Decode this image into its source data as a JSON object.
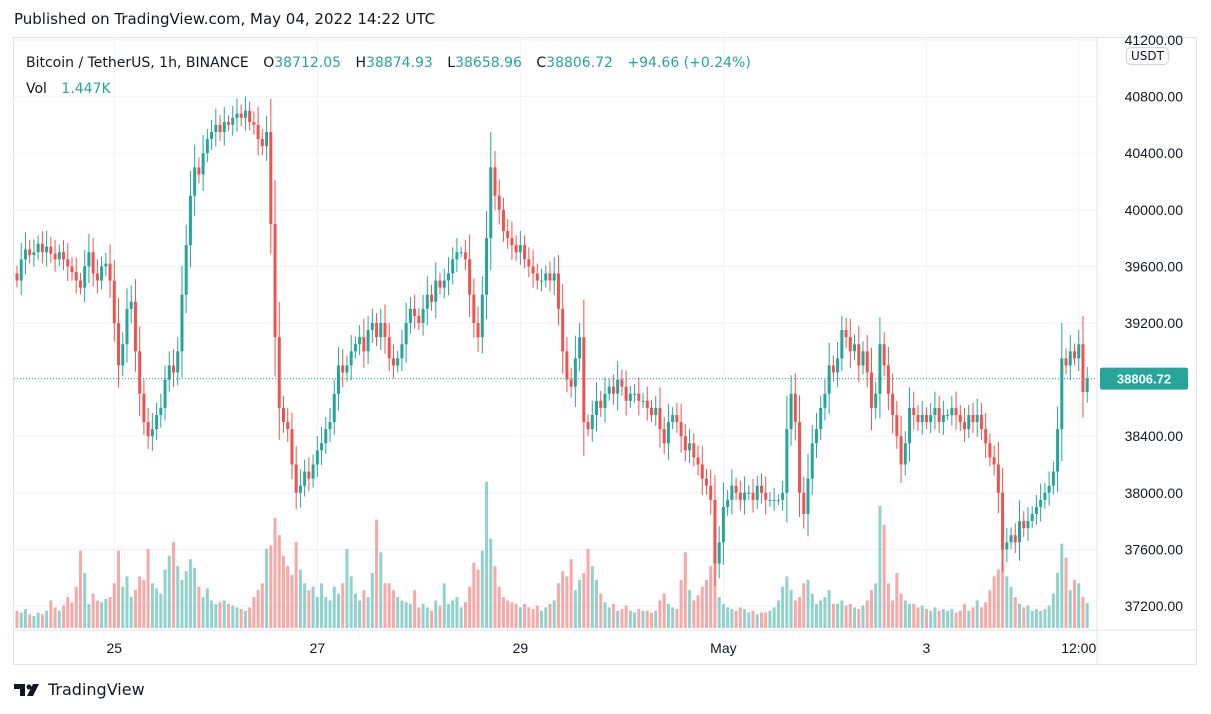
{
  "published": "Published on TradingView.com, May 04, 2022 14:22 UTC",
  "legend": {
    "symbol": "Bitcoin / TetherUS, 1h, BINANCE",
    "o_label": "O",
    "o": "38712.05",
    "h_label": "H",
    "h": "38874.93",
    "l_label": "L",
    "l": "38658.96",
    "c_label": "C",
    "c": "38806.72",
    "change": "+94.66 (+0.24%)",
    "vol_label": "Vol",
    "vol": "1.447K"
  },
  "currency": "USDT",
  "footer": {
    "brand": "TradingView"
  },
  "colors": {
    "up": "#26a69a",
    "down": "#ef5350",
    "grid": "#f0f3fa"
  },
  "chart_data": {
    "type": "candlestick",
    "interval": "1h",
    "start": "Apr 24 01:00",
    "end": "May 04 14:00",
    "ylim": [
      37000,
      41250
    ],
    "y_ticks": [
      "41200.00",
      "40800.00",
      "40400.00",
      "40000.00",
      "39600.00",
      "39200.00",
      "38400.00",
      "38000.00",
      "37600.00",
      "37200.00"
    ],
    "grid_values": [
      41200,
      40800,
      40400,
      40000,
      39600,
      39200,
      38800,
      38400,
      38000,
      37600,
      37200
    ],
    "x_ticks": [
      {
        "label": "25",
        "index": 23
      },
      {
        "label": "27",
        "index": 71
      },
      {
        "label": "29",
        "index": 119
      },
      {
        "label": "May",
        "index": 167
      },
      {
        "label": "3",
        "index": 215
      },
      {
        "label": "12:00",
        "index": 251
      }
    ],
    "last_price": "38806.72",
    "last_price_value": 38806.72,
    "first_open": 39550,
    "close": [
      39500,
      39650,
      39720,
      39680,
      39700,
      39760,
      39700,
      39740,
      39690,
      39650,
      39700,
      39650,
      39600,
      39560,
      39500,
      39450,
      39600,
      39700,
      39550,
      39500,
      39600,
      39620,
      39500,
      39200,
      38900,
      39050,
      39300,
      39350,
      39000,
      38700,
      38500,
      38400,
      38450,
      38550,
      38600,
      38800,
      38900,
      38850,
      39000,
      39400,
      39750,
      40100,
      40300,
      40250,
      40400,
      40500,
      40550,
      40600,
      40550,
      40620,
      40600,
      40650,
      40680,
      40650,
      40700,
      40620,
      40600,
      40500,
      40450,
      40550,
      39900,
      39100,
      38600,
      38500,
      38450,
      38200,
      38000,
      38050,
      38150,
      38100,
      38200,
      38300,
      38350,
      38450,
      38500,
      38700,
      38900,
      38850,
      38900,
      39000,
      39050,
      39100,
      39000,
      39150,
      39200,
      39100,
      39200,
      39100,
      38950,
      38900,
      38950,
      39050,
      39200,
      39300,
      39250,
      39200,
      39300,
      39400,
      39350,
      39500,
      39450,
      39500,
      39550,
      39650,
      39700,
      39700,
      39650,
      39400,
      39200,
      39100,
      39400,
      39800,
      40300,
      40100,
      40000,
      39850,
      39800,
      39750,
      39700,
      39750,
      39650,
      39600,
      39550,
      39500,
      39500,
      39550,
      39500,
      39550,
      39300,
      39000,
      38800,
      38750,
      38950,
      39100,
      38500,
      38450,
      38550,
      38650,
      38600,
      38700,
      38750,
      38700,
      38800,
      38750,
      38650,
      38700,
      38700,
      38650,
      38650,
      38600,
      38550,
      38600,
      38450,
      38350,
      38500,
      38550,
      38500,
      38400,
      38300,
      38350,
      38250,
      38200,
      38100,
      38050,
      37950,
      37500,
      37650,
      37900,
      37950,
      38050,
      38000,
      37950,
      38000,
      38000,
      37950,
      38050,
      38000,
      37950,
      37950,
      37950,
      37950,
      38000,
      38450,
      38700,
      38500,
      38000,
      37850,
      38100,
      38350,
      38450,
      38600,
      38700,
      38900,
      38850,
      38950,
      39150,
      39100,
      39000,
      39050,
      38900,
      39000,
      38850,
      38600,
      38700,
      39050,
      38900,
      38700,
      38550,
      38400,
      38200,
      38350,
      38600,
      38550,
      38500,
      38550,
      38500,
      38550,
      38600,
      38500,
      38550,
      38550,
      38600,
      38550,
      38500,
      38450,
      38550,
      38500,
      38550,
      38450,
      38350,
      38250,
      38200,
      38000,
      37600,
      37650,
      37700,
      37650,
      37800,
      37750,
      37800,
      37850,
      37900,
      37950,
      38000,
      38050,
      38150,
      38450,
      38950,
      38900,
      39000,
      38950,
      39050,
      38712.05,
      38806.72
    ],
    "volume_k": [
      1.0,
      0.9,
      1.1,
      0.8,
      0.7,
      0.9,
      0.8,
      1.0,
      1.6,
      1.2,
      1.0,
      1.3,
      1.8,
      1.5,
      2.4,
      4.5,
      3.2,
      1.4,
      2.0,
      1.6,
      1.5,
      1.7,
      1.8,
      2.6,
      4.5,
      2.4,
      3.0,
      1.8,
      2.2,
      3.0,
      2.8,
      4.6,
      2.6,
      2.3,
      2.0,
      3.4,
      4.2,
      5.0,
      3.6,
      2.8,
      3.3,
      4.0,
      3.5,
      2.4,
      1.8,
      2.3,
      1.6,
      1.4,
      1.5,
      1.6,
      1.4,
      1.3,
      1.2,
      1.1,
      1.0,
      1.2,
      1.8,
      2.2,
      2.6,
      4.6,
      4.8,
      6.4,
      5.4,
      4.2,
      3.6,
      3.1,
      5.0,
      3.4,
      2.6,
      2.2,
      2.4,
      1.8,
      2.6,
      1.8,
      1.6,
      2.4,
      2.0,
      2.6,
      4.6,
      3.0,
      2.0,
      1.6,
      2.2,
      1.8,
      3.2,
      6.3,
      4.4,
      2.6,
      2.6,
      2.2,
      1.8,
      1.6,
      1.5,
      1.4,
      2.2,
      1.2,
      1.4,
      1.2,
      1.0,
      1.6,
      1.3,
      2.6,
      1.4,
      1.6,
      1.8,
      1.2,
      1.5,
      2.4,
      3.8,
      3.4,
      4.5,
      8.5,
      5.2,
      3.6,
      2.4,
      1.8,
      1.6,
      1.5,
      1.4,
      1.2,
      1.4,
      1.2,
      1.1,
      1.3,
      1.0,
      1.2,
      1.4,
      1.6,
      2.6,
      3.3,
      3.0,
      4.0,
      2.2,
      2.8,
      3.2,
      4.6,
      3.6,
      2.8,
      2.0,
      1.5,
      1.2,
      1.4,
      1.0,
      1.1,
      1.3,
      1.0,
      0.9,
      1.1,
      1.0,
      1.0,
      0.9,
      1.0,
      1.6,
      2.0,
      1.4,
      1.2,
      1.1,
      2.8,
      4.4,
      2.2,
      1.6,
      1.9,
      2.4,
      2.8,
      3.6,
      4.8,
      1.8,
      1.4,
      1.2,
      1.1,
      1.0,
      1.2,
      1.1,
      0.9,
      1.0,
      0.8,
      0.9,
      0.9,
      1.0,
      1.2,
      1.6,
      2.4,
      3.0,
      2.2,
      1.6,
      1.8,
      2.6,
      2.8,
      2.0,
      1.4,
      1.6,
      1.8,
      2.2,
      1.4,
      1.4,
      1.6,
      1.3,
      1.4,
      1.2,
      1.1,
      1.3,
      1.6,
      2.2,
      2.6,
      7.1,
      6.0,
      2.6,
      1.6,
      3.2,
      2.0,
      1.6,
      1.4,
      1.4,
      1.2,
      1.3,
      1.1,
      1.0,
      1.2,
      1.0,
      1.1,
      1.0,
      1.1,
      0.9,
      1.0,
      1.4,
      1.0,
      1.2,
      1.6,
      1.2,
      1.5,
      2.2,
      3.0,
      3.4,
      4.8,
      3.0,
      2.4,
      1.8,
      1.4,
      1.2,
      1.3,
      1.0,
      1.1,
      1.0,
      1.1,
      1.3,
      2.0,
      3.2,
      4.9,
      4.1,
      2.2,
      2.8,
      2.6,
      1.8,
      1.447
    ]
  }
}
